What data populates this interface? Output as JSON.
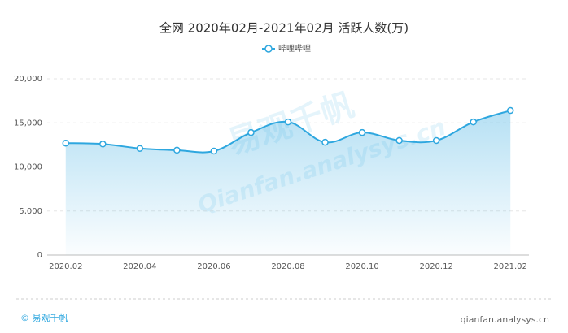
{
  "chart_data": {
    "type": "line",
    "title": "全网 2020年02月-2021年02月 活跃人数(万)",
    "categories": [
      "2020.02",
      null,
      "2020.04",
      null,
      "2020.06",
      null,
      "2020.08",
      null,
      "2020.10",
      null,
      "2020.12",
      null,
      "2021.02"
    ],
    "series": [
      {
        "name": "哔哩哔哩",
        "color": "#2ea7df",
        "values": [
          12700,
          12600,
          12100,
          11900,
          11800,
          13900,
          15100,
          12800,
          13900,
          13000,
          13000,
          15100,
          16400
        ]
      }
    ],
    "ylim": [
      0,
      20000
    ],
    "yticks": [
      0,
      {
        "value": 5000,
        "label": "5,000"
      },
      {
        "value": 10000,
        "label": "10,000"
      },
      {
        "value": 15000,
        "label": "15,000"
      },
      {
        "value": 20000,
        "label": "20,000"
      }
    ],
    "grid": true,
    "legend": "top",
    "watermark": [
      "易观千帆",
      "Qianfan.analysys.cn"
    ]
  },
  "footer": {
    "left": "© 易观千帆",
    "right": "qianfan.analysys.cn"
  }
}
